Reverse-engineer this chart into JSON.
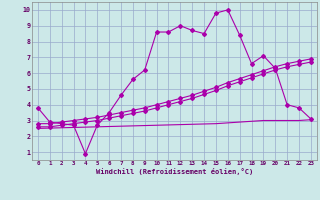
{
  "title": "",
  "xlabel": "Windchill (Refroidissement éolien,°C)",
  "background_color": "#cce8e8",
  "grid_color": "#99aacc",
  "line_color": "#aa00aa",
  "xlim": [
    -0.5,
    23.5
  ],
  "ylim": [
    0.5,
    10.5
  ],
  "xtick_vals": [
    0,
    1,
    2,
    3,
    4,
    5,
    6,
    7,
    8,
    9,
    10,
    11,
    12,
    13,
    14,
    15,
    16,
    17,
    18,
    19,
    20,
    21,
    22,
    23
  ],
  "ytick_vals": [
    1,
    2,
    3,
    4,
    5,
    6,
    7,
    8,
    9,
    10
  ],
  "curve1_x": [
    0,
    1,
    2,
    3,
    4,
    5,
    6,
    7,
    8,
    9,
    10,
    11,
    12,
    13,
    14,
    15,
    16,
    17,
    18,
    19,
    20,
    21,
    22,
    23
  ],
  "curve1_y": [
    3.8,
    2.9,
    2.8,
    2.7,
    0.9,
    2.7,
    3.5,
    4.6,
    5.6,
    6.2,
    8.6,
    8.6,
    9.0,
    8.7,
    8.5,
    9.8,
    10.0,
    8.4,
    6.6,
    7.1,
    6.3,
    4.0,
    3.8,
    3.1
  ],
  "curve2_x": [
    0,
    1,
    2,
    3,
    4,
    5,
    6,
    7,
    8,
    9,
    10,
    11,
    12,
    13,
    14,
    15,
    16,
    17,
    18,
    19,
    20,
    21,
    22,
    23
  ],
  "curve2_y": [
    2.8,
    2.8,
    2.9,
    3.0,
    3.1,
    3.2,
    3.35,
    3.5,
    3.65,
    3.8,
    4.0,
    4.2,
    4.4,
    4.6,
    4.85,
    5.1,
    5.4,
    5.65,
    5.9,
    6.15,
    6.4,
    6.6,
    6.75,
    6.9
  ],
  "curve3_x": [
    0,
    1,
    2,
    3,
    4,
    5,
    6,
    7,
    8,
    9,
    10,
    11,
    12,
    13,
    14,
    15,
    16,
    17,
    18,
    19,
    20,
    21,
    22,
    23
  ],
  "curve3_y": [
    2.6,
    2.6,
    2.7,
    2.8,
    2.9,
    3.0,
    3.15,
    3.3,
    3.45,
    3.6,
    3.8,
    4.0,
    4.2,
    4.4,
    4.65,
    4.9,
    5.2,
    5.45,
    5.7,
    5.95,
    6.2,
    6.4,
    6.55,
    6.7
  ],
  "curve4_x": [
    0,
    5,
    10,
    15,
    16,
    17,
    18,
    19,
    20,
    21,
    22,
    23
  ],
  "curve4_y": [
    2.5,
    2.6,
    2.7,
    2.8,
    2.85,
    2.9,
    2.95,
    3.0,
    3.0,
    3.0,
    3.0,
    3.05
  ],
  "marker": "D",
  "marker_size": 2.0,
  "linewidth": 0.8
}
